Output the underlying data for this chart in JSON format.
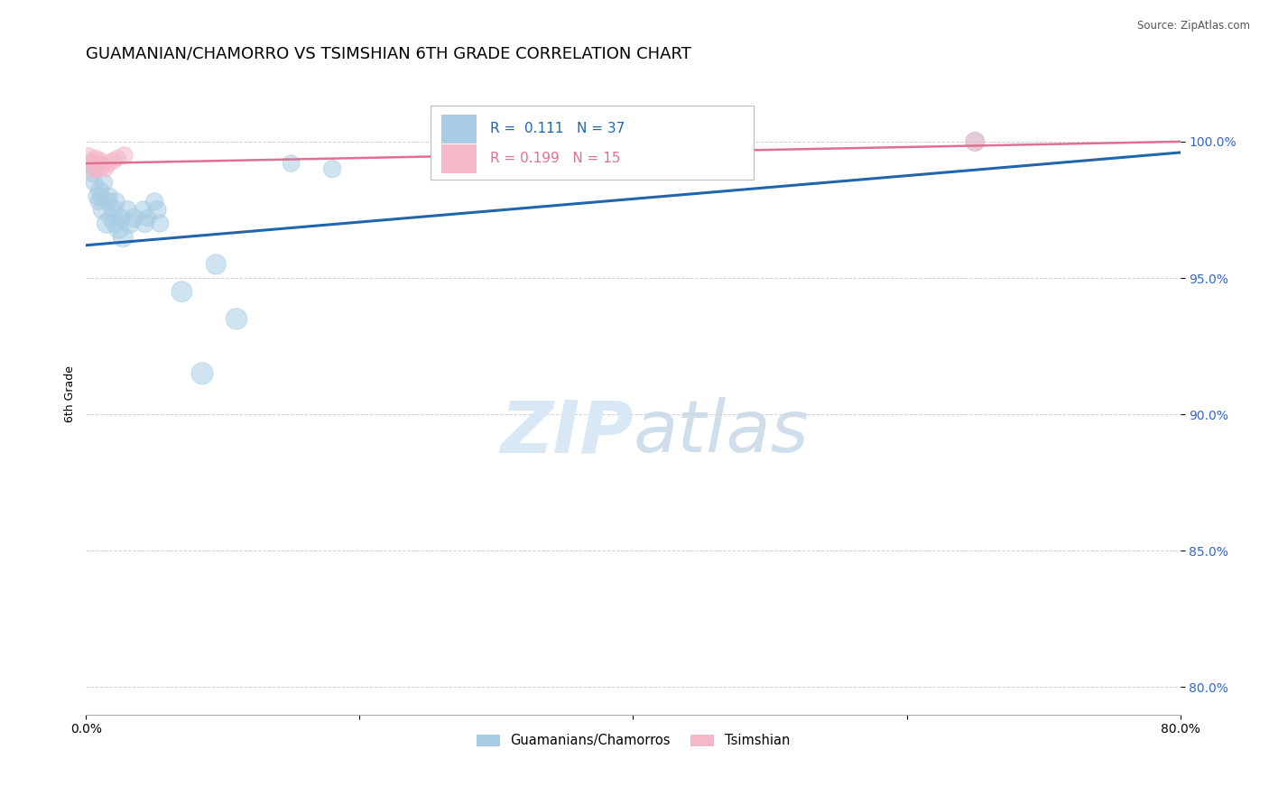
{
  "title": "GUAMANIAN/CHAMORRO VS TSIMSHIAN 6TH GRADE CORRELATION CHART",
  "source_text": "Source: ZipAtlas.com",
  "ylabel": "6th Grade",
  "legend_label_blue": "Guamanians/Chamorros",
  "legend_label_pink": "Tsimshian",
  "R_blue": 0.111,
  "N_blue": 37,
  "R_pink": 0.199,
  "N_pink": 15,
  "color_blue": "#a8cce4",
  "color_pink": "#f4b8c8",
  "line_color_blue": "#2166ac",
  "line_color_pink": "#e07090",
  "xlim": [
    0.0,
    80.0
  ],
  "ylim": [
    79.0,
    102.5
  ],
  "blue_x": [
    0.3,
    0.4,
    0.5,
    0.6,
    0.7,
    0.8,
    0.9,
    1.0,
    1.1,
    1.2,
    1.3,
    1.5,
    1.6,
    1.7,
    1.8,
    2.0,
    2.1,
    2.2,
    2.4,
    2.5,
    2.7,
    3.0,
    3.2,
    3.5,
    4.2,
    4.3,
    4.5,
    5.0,
    5.2,
    5.4,
    7.0,
    8.5,
    9.5,
    11.0,
    15.0,
    18.0,
    65.0
  ],
  "blue_y": [
    99.0,
    99.2,
    98.8,
    98.5,
    99.0,
    98.0,
    97.8,
    98.2,
    98.0,
    97.5,
    98.5,
    97.0,
    97.8,
    98.0,
    97.2,
    97.5,
    97.0,
    97.8,
    96.8,
    97.2,
    96.5,
    97.5,
    97.0,
    97.2,
    97.5,
    97.0,
    97.2,
    97.8,
    97.5,
    97.0,
    94.5,
    91.5,
    95.5,
    93.5,
    99.2,
    99.0,
    100.0
  ],
  "blue_sizes": [
    80,
    90,
    100,
    120,
    100,
    130,
    110,
    140,
    120,
    150,
    130,
    160,
    140,
    120,
    130,
    150,
    140,
    130,
    160,
    150,
    170,
    140,
    160,
    150,
    130,
    140,
    120,
    130,
    140,
    130,
    180,
    200,
    170,
    190,
    120,
    130,
    150
  ],
  "pink_x": [
    0.2,
    0.4,
    0.5,
    0.6,
    0.7,
    0.8,
    0.9,
    1.0,
    1.2,
    1.4,
    1.6,
    2.0,
    2.3,
    2.8,
    65.0
  ],
  "pink_y": [
    99.5,
    99.3,
    99.0,
    99.2,
    99.4,
    99.0,
    99.2,
    99.3,
    99.1,
    99.0,
    99.2,
    99.3,
    99.4,
    99.5,
    100.0
  ],
  "pink_sizes": [
    100,
    110,
    120,
    130,
    110,
    140,
    120,
    130,
    120,
    110,
    130,
    120,
    110,
    120,
    150
  ],
  "blue_trend": [
    96.2,
    99.6
  ],
  "pink_trend": [
    99.2,
    100.0
  ],
  "watermark_zip": "ZIP",
  "watermark_atlas": "atlas",
  "watermark_color": "#d8e8f5",
  "background_color": "#ffffff",
  "grid_color": "#cccccc",
  "title_fontsize": 13,
  "axis_label_fontsize": 9,
  "tick_fontsize": 10,
  "legend_fontsize": 11
}
